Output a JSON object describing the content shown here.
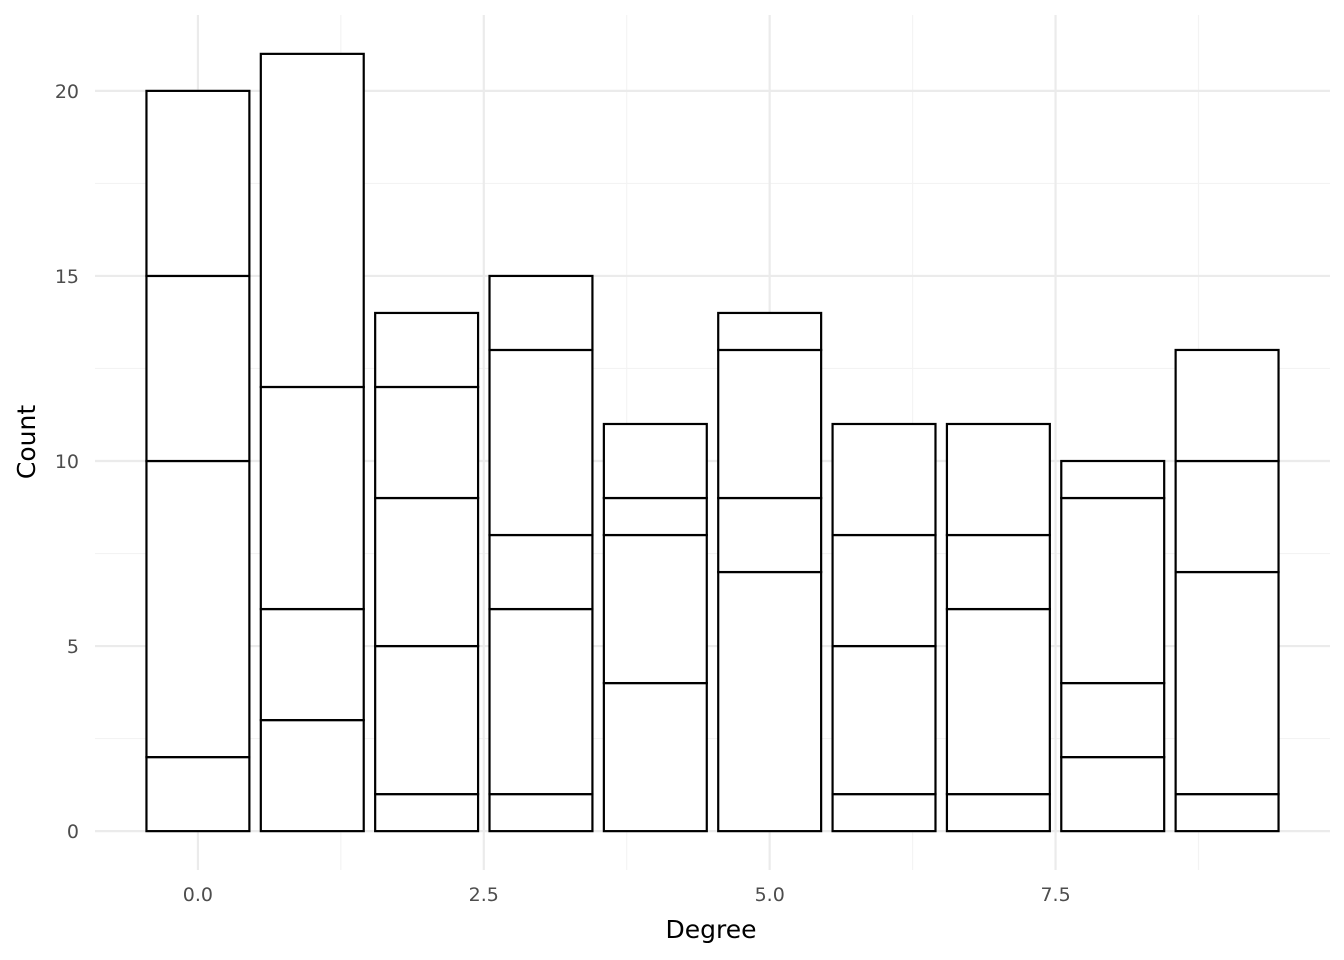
{
  "chart_data": {
    "type": "bar",
    "stacked": true,
    "title": "",
    "xlabel": "Degree",
    "ylabel": "Count",
    "x": [
      0,
      1,
      2,
      3,
      4,
      5,
      6,
      7,
      8,
      9
    ],
    "segment_boundaries": [
      [
        2,
        10,
        15,
        20
      ],
      [
        3,
        6,
        12,
        21
      ],
      [
        1,
        5,
        9,
        12,
        14
      ],
      [
        1,
        6,
        8,
        13,
        15
      ],
      [
        4,
        8,
        9,
        11
      ],
      [
        7,
        9,
        13,
        14
      ],
      [
        1,
        5,
        8,
        11
      ],
      [
        1,
        6,
        8,
        11
      ],
      [
        2,
        4,
        9,
        10
      ],
      [
        1,
        7,
        10,
        13
      ]
    ],
    "totals": [
      20,
      21,
      14,
      15,
      11,
      14,
      11,
      11,
      10,
      13
    ],
    "xlim": [
      -0.9,
      9.9
    ],
    "ylim": [
      -1.05,
      22.05
    ],
    "x_ticks": [
      0,
      2.5,
      5,
      7.5
    ],
    "x_tick_labels": [
      "0.0",
      "2.5",
      "5.0",
      "7.5"
    ],
    "y_ticks": [
      0,
      5,
      10,
      15,
      20
    ],
    "y_tick_labels": [
      "0",
      "5",
      "10",
      "15",
      "20"
    ],
    "grid": true,
    "legend": "none",
    "colors": {
      "bar_fill": "#ffffff",
      "bar_outline": "#000000",
      "grid": "#ebebeb",
      "tick_text": "#4d4d4d"
    }
  }
}
